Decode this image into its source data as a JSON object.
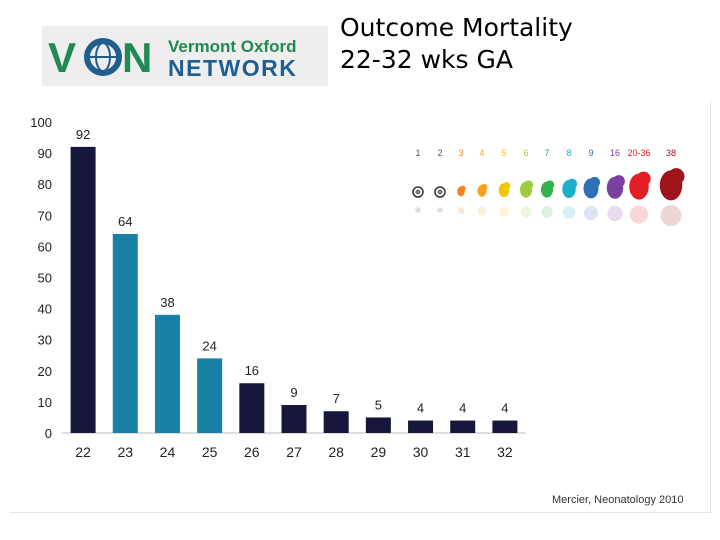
{
  "logo": {
    "mark": "VON",
    "line1": "Vermont Oxford",
    "line2": "NETWORK",
    "colors": {
      "green": "#1f8a53",
      "blue": "#1f5f8f",
      "bg": "#eeeeee"
    }
  },
  "title": {
    "line1": "Outcome Mortality",
    "line2": "22-32 wks GA"
  },
  "chart_data": {
    "type": "bar",
    "categories": [
      "22",
      "23",
      "24",
      "25",
      "26",
      "27",
      "28",
      "29",
      "30",
      "31",
      "32"
    ],
    "values": [
      92,
      64,
      38,
      24,
      16,
      9,
      7,
      5,
      4,
      4,
      4
    ],
    "bar_colors": [
      "#17173d",
      "#1a81a6",
      "#1a81a6",
      "#1a81a6",
      "#17173d",
      "#17173d",
      "#17173d",
      "#17173d",
      "#17173d",
      "#17173d",
      "#17173d"
    ],
    "title": "",
    "xlabel": "",
    "ylabel": "",
    "ylim": [
      0,
      100
    ],
    "yticks": [
      0,
      10,
      20,
      30,
      40,
      50,
      60,
      70,
      80,
      90,
      100
    ],
    "grid": false
  },
  "inset": {
    "weeks": [
      "1",
      "2",
      "3",
      "4",
      "5",
      "6",
      "7",
      "8",
      "9",
      "16",
      "20-36",
      "38"
    ],
    "colors": [
      "#555555",
      "#555555",
      "#f58220",
      "#f7a21b",
      "#f2c500",
      "#9ccc3c",
      "#2fb34a",
      "#1ab0c8",
      "#2e6fb7",
      "#7b3fa0",
      "#e31e25",
      "#a0151c"
    ]
  },
  "credit": "Mercier, Neonatology 2010"
}
